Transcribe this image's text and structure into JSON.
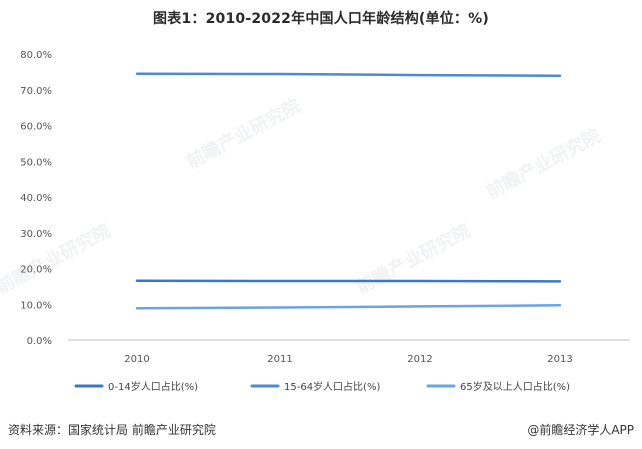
{
  "chart_data": {
    "type": "line",
    "title": "图表1：2010-2022年中国人口年龄结构(单位：%)",
    "categories": [
      "2010",
      "2011",
      "2012",
      "2013"
    ],
    "series": [
      {
        "name": "0-14岁人口占比(%)",
        "values": [
          16.6,
          16.5,
          16.5,
          16.4
        ],
        "color": "#3a78c7"
      },
      {
        "name": "15-64岁人口占比(%)",
        "values": [
          74.5,
          74.4,
          74.1,
          73.9
        ],
        "color": "#4a8ad6"
      },
      {
        "name": "65岁及以上人口占比(%)",
        "values": [
          8.9,
          9.1,
          9.4,
          9.7
        ],
        "color": "#6aa3e6"
      }
    ],
    "y_ticks": [
      "0.0%",
      "10.0%",
      "20.0%",
      "30.0%",
      "40.0%",
      "50.0%",
      "60.0%",
      "70.0%",
      "80.0%"
    ],
    "ylim": [
      0,
      80
    ],
    "grid": false,
    "legend_position": "bottom",
    "xlabel": "",
    "ylabel": ""
  },
  "watermark_text": "前瞻产业研究院",
  "footer": {
    "source": "资料来源：国家统计局 前瞻产业研究院",
    "credit": "@前瞻经济学人APP"
  }
}
